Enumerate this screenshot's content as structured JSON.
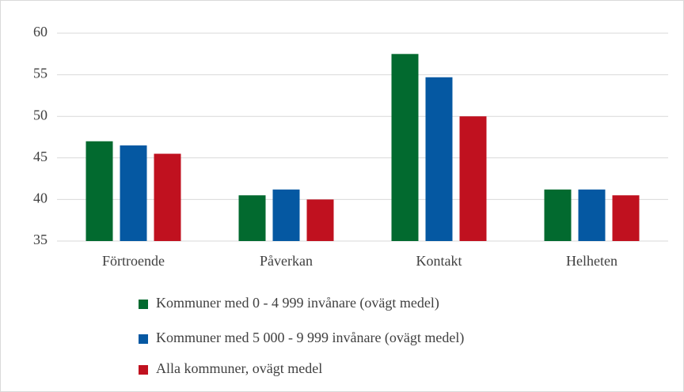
{
  "chart_data": {
    "type": "bar",
    "categories": [
      "Förtroende",
      "Påverkan",
      "Kontakt",
      "Helheten"
    ],
    "series": [
      {
        "name": "Kommuner med 0 - 4 999 invånare (ovägt medel)",
        "color": "#026a2f",
        "values": [
          47,
          40.5,
          57.5,
          41.2
        ]
      },
      {
        "name": "Kommuner med 5 000 - 9 999 invånare (ovägt medel)",
        "color": "#0558a2",
        "values": [
          46.5,
          41.2,
          54.7,
          41.2
        ]
      },
      {
        "name": "Alla kommuner, ovägt medel",
        "color": "#c0111f",
        "values": [
          45.5,
          40,
          50,
          40.5
        ]
      }
    ],
    "ylim": [
      35,
      60
    ],
    "yticks": [
      35,
      40,
      45,
      50,
      55,
      60
    ],
    "grid": true,
    "legend": "bottom"
  }
}
